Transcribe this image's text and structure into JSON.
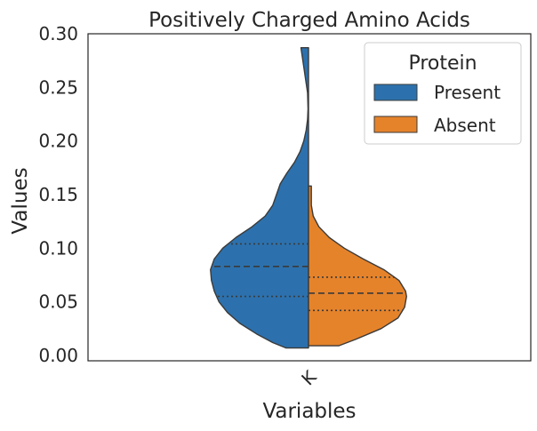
{
  "chart_data": {
    "type": "violin",
    "title": "Positively Charged Amino Acids",
    "xlabel": "Variables",
    "ylabel": "Values",
    "categories": [
      "K"
    ],
    "ylim": [
      -0.005,
      0.3
    ],
    "yticks": [
      "0.00",
      "0.05",
      "0.10",
      "0.15",
      "0.20",
      "0.25",
      "0.30"
    ],
    "ytick_values": [
      0,
      0.05,
      0.1,
      0.15,
      0.2,
      0.25,
      0.3
    ],
    "legend": {
      "title": "Protein",
      "placement": "top-right",
      "entries": [
        "Present",
        "Absent"
      ]
    },
    "series": [
      {
        "name": "Present",
        "color": "#2c71ad",
        "side": "left",
        "min": 0.007,
        "max": 0.287,
        "q1": 0.055,
        "median": 0.083,
        "q3": 0.104,
        "profile": [
          [
            0.007,
            0.24
          ],
          [
            0.012,
            0.38
          ],
          [
            0.02,
            0.55
          ],
          [
            0.03,
            0.73
          ],
          [
            0.04,
            0.86
          ],
          [
            0.05,
            0.95
          ],
          [
            0.06,
            1.0
          ],
          [
            0.07,
            1.03
          ],
          [
            0.08,
            1.04
          ],
          [
            0.09,
            1.0
          ],
          [
            0.1,
            0.91
          ],
          [
            0.11,
            0.77
          ],
          [
            0.12,
            0.6
          ],
          [
            0.13,
            0.46
          ],
          [
            0.14,
            0.38
          ],
          [
            0.15,
            0.34
          ],
          [
            0.16,
            0.3
          ],
          [
            0.17,
            0.23
          ],
          [
            0.18,
            0.15
          ],
          [
            0.19,
            0.09
          ],
          [
            0.2,
            0.05
          ],
          [
            0.21,
            0.025
          ],
          [
            0.22,
            0.01
          ],
          [
            0.23,
            0.005
          ],
          [
            0.245,
            0.01
          ],
          [
            0.26,
            0.035
          ],
          [
            0.275,
            0.06
          ],
          [
            0.287,
            0.08
          ]
        ]
      },
      {
        "name": "Absent",
        "color": "#e5832b",
        "side": "right",
        "min": 0.009,
        "max": 0.158,
        "q1": 0.042,
        "median": 0.058,
        "q3": 0.073,
        "profile": [
          [
            0.009,
            0.32
          ],
          [
            0.015,
            0.5
          ],
          [
            0.025,
            0.77
          ],
          [
            0.035,
            0.95
          ],
          [
            0.045,
            1.02
          ],
          [
            0.055,
            1.04
          ],
          [
            0.06,
            1.03
          ],
          [
            0.07,
            0.96
          ],
          [
            0.08,
            0.8
          ],
          [
            0.09,
            0.58
          ],
          [
            0.1,
            0.38
          ],
          [
            0.11,
            0.22
          ],
          [
            0.12,
            0.11
          ],
          [
            0.13,
            0.05
          ],
          [
            0.14,
            0.03
          ],
          [
            0.15,
            0.03
          ],
          [
            0.158,
            0.03
          ]
        ]
      }
    ],
    "grid": false
  }
}
